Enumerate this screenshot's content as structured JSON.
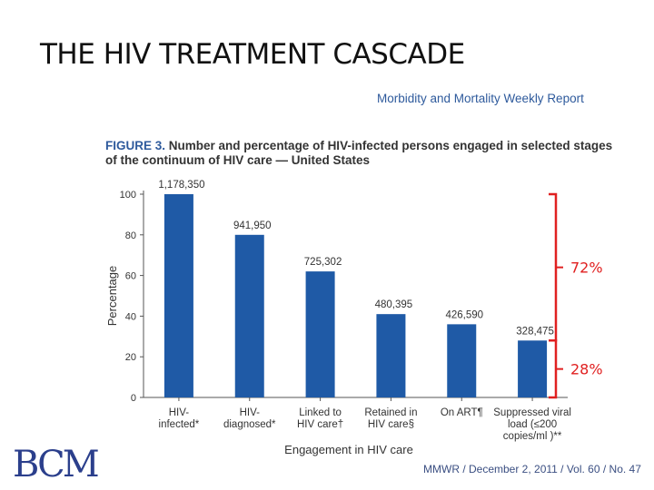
{
  "slide": {
    "title": "THE HIV TREATMENT CASCADE",
    "journal": "Morbidity and Mortality Weekly Report",
    "figure_label": "FIGURE 3.",
    "figure_caption_line1": "Number and percentage of HIV-infected persons engaged in selected stages",
    "figure_caption_line2": "of the continuum of HIV care — United States",
    "footer": "MMWR  /  December 2, 2011  /  Vol. 60  /  No. 47",
    "logo": "BCM"
  },
  "colors": {
    "bar": "#1f5aa6",
    "bracket": "#e02020",
    "axis": "#555555",
    "text": "#333333"
  },
  "chart_data": {
    "type": "bar",
    "xlabel": "Engagement in HIV care",
    "ylabel": "Percentage",
    "ylim": [
      0,
      100
    ],
    "yticks": [
      0,
      20,
      40,
      60,
      80,
      100
    ],
    "categories": [
      [
        "HIV-",
        "infected*"
      ],
      [
        "HIV-",
        "diagnosed*"
      ],
      [
        "Linked to",
        "HIV care†"
      ],
      [
        "Retained in",
        "HIV care§"
      ],
      [
        "On ART¶"
      ],
      [
        "Suppressed viral",
        "load (≤200",
        "copies/ml )**"
      ]
    ],
    "values": [
      100,
      80,
      62,
      41,
      36,
      28
    ],
    "counts": [
      "1,178,350",
      "941,950",
      "725,302",
      "480,395",
      "426,590",
      "328,475"
    ],
    "annotations": [
      {
        "label": "72%",
        "from": 28,
        "to": 100
      },
      {
        "label": "28%",
        "from": 0,
        "to": 28
      }
    ]
  }
}
